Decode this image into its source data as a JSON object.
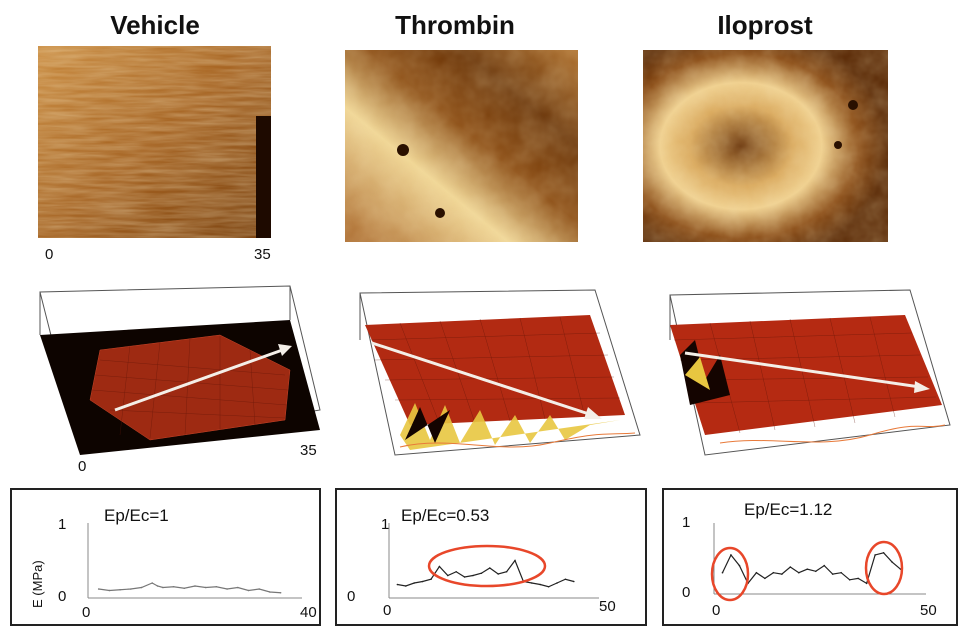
{
  "columns": [
    {
      "title": "Vehicle"
    },
    {
      "title": "Thrombin"
    },
    {
      "title": "Iloprost"
    }
  ],
  "afm_scale": {
    "min": "0",
    "max": "35"
  },
  "surface_scale": {
    "min": "0",
    "max": "35"
  },
  "colors": {
    "afm_dark": "#5a2a05",
    "afm_mid": "#b0702a",
    "afm_light": "#f3dca0",
    "surface_red": "#b52a12",
    "highlight": "#e8472a"
  },
  "chart_data": [
    {
      "type": "line",
      "panel": "Vehicle",
      "annotation": "Ep/Ec=1",
      "ylabel": "E (MPa)",
      "y_ticks": [
        "1",
        "0"
      ],
      "x_ticks": [
        "0",
        "40"
      ],
      "xlim": [
        0,
        40
      ],
      "ylim": [
        0,
        1
      ],
      "x": [
        2,
        4,
        6,
        8,
        10,
        12,
        13,
        14,
        16,
        18,
        20,
        22,
        24,
        26,
        28,
        30,
        32,
        34,
        36
      ],
      "values": [
        0.12,
        0.1,
        0.11,
        0.12,
        0.14,
        0.2,
        0.16,
        0.14,
        0.15,
        0.13,
        0.16,
        0.14,
        0.15,
        0.12,
        0.14,
        0.1,
        0.12,
        0.08,
        0.07
      ]
    },
    {
      "type": "line",
      "panel": "Thrombin",
      "annotation": "Ep/Ec=0.53",
      "y_ticks": [
        "1",
        "0"
      ],
      "x_ticks": [
        "0",
        "50"
      ],
      "xlim": [
        0,
        50
      ],
      "ylim": [
        0,
        1
      ],
      "x": [
        2,
        4,
        6,
        8,
        10,
        12,
        14,
        16,
        18,
        20,
        22,
        24,
        26,
        28,
        30,
        32,
        34,
        36,
        38,
        40,
        42,
        44
      ],
      "values": [
        0.18,
        0.16,
        0.2,
        0.22,
        0.25,
        0.42,
        0.3,
        0.35,
        0.28,
        0.3,
        0.33,
        0.4,
        0.32,
        0.35,
        0.5,
        0.22,
        0.2,
        0.18,
        0.15,
        0.2,
        0.25,
        0.22
      ]
    },
    {
      "type": "line",
      "panel": "Iloprost",
      "annotation": "Ep/Ec=1.12",
      "y_ticks": [
        "1",
        "0"
      ],
      "x_ticks": [
        "0",
        "50"
      ],
      "xlim": [
        0,
        50
      ],
      "ylim": [
        0,
        1
      ],
      "x": [
        2,
        4,
        6,
        8,
        10,
        12,
        14,
        16,
        18,
        20,
        22,
        24,
        26,
        28,
        30,
        32,
        34,
        36,
        38,
        40,
        42,
        44
      ],
      "values": [
        0.3,
        0.55,
        0.4,
        0.15,
        0.3,
        0.22,
        0.3,
        0.28,
        0.38,
        0.3,
        0.35,
        0.32,
        0.4,
        0.28,
        0.3,
        0.2,
        0.22,
        0.15,
        0.55,
        0.58,
        0.45,
        0.35
      ]
    }
  ]
}
